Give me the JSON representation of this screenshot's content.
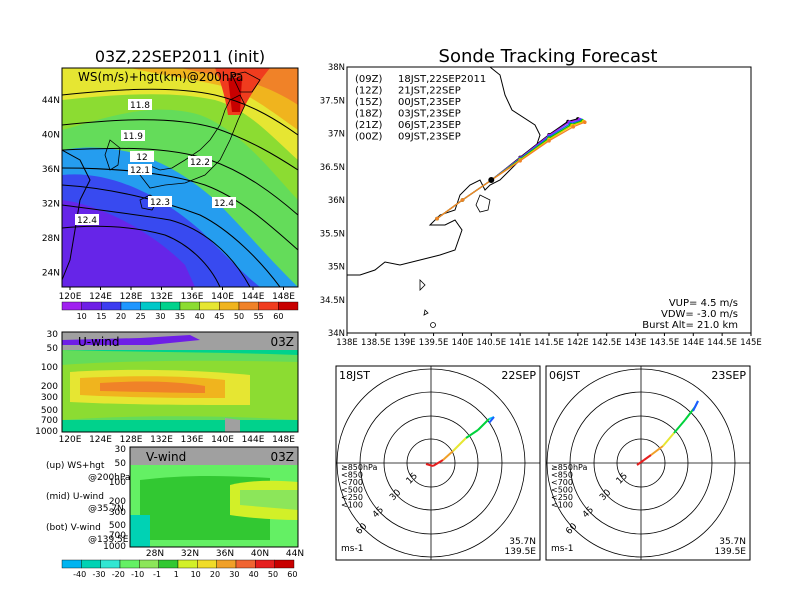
{
  "left_title": "03Z,22SEP2011 (init)",
  "main_title": "Sonde Tracking Forecast",
  "colors": {
    "ws_scale": [
      "#a020f0",
      "#6e1ee6",
      "#3c3cf0",
      "#1e96ff",
      "#00c8c8",
      "#00d28c",
      "#8cdc32",
      "#e6e632",
      "#f0b41e",
      "#f08228",
      "#f03c1e",
      "#c80000"
    ],
    "v_scale": [
      "#00b4f0",
      "#00d2b4",
      "#32e6d2",
      "#64f064",
      "#8ce65a",
      "#32c832",
      "#d2f028",
      "#f0dc28",
      "#f0a028",
      "#f06432",
      "#e61e1e",
      "#c80000"
    ],
    "track": [
      "#000000",
      "#a020f0",
      "#1e5aff",
      "#00c800",
      "#f0c800",
      "#f08228"
    ],
    "hodo": [
      "#e61e1e",
      "#f0a028",
      "#e6e632",
      "#00d23c",
      "#00c8f0",
      "#1e5aff"
    ]
  },
  "panel_up": {
    "label": "WS(m/s)+hgt(km)@200hPa",
    "x_ticks": [
      "120E",
      "124E",
      "128E",
      "132E",
      "136E",
      "140E",
      "144E",
      "148E"
    ],
    "y_ticks": [
      "44N",
      "40N",
      "36N",
      "32N",
      "28N",
      "24N"
    ],
    "contour_labels": [
      "11.8",
      "11.9",
      "12",
      "12.1",
      "12.2",
      "12.3",
      "12.4",
      "12.4"
    ],
    "colorbar_labels": [
      "10",
      "15",
      "20",
      "25",
      "30",
      "35",
      "40",
      "45",
      "50",
      "55",
      "60"
    ]
  },
  "panel_mid": {
    "label": "U-wind",
    "time": "03Z",
    "x_ticks": [
      "120E",
      "124E",
      "128E",
      "132E",
      "136E",
      "140E",
      "144E",
      "148E"
    ],
    "y_ticks": [
      "30",
      "50",
      "100",
      "200",
      "300",
      "500",
      "700",
      "1000"
    ]
  },
  "panel_bot": {
    "label": "V-wind",
    "time": "03Z",
    "x_ticks": [
      "28N",
      "32N",
      "36N",
      "40N",
      "44N"
    ],
    "y_ticks": [
      "30",
      "50",
      "100",
      "200",
      "300",
      "500",
      "700",
      "1000"
    ],
    "colorbar_labels": [
      "-40",
      "-30",
      "-20",
      "-10",
      "-1",
      "1",
      "10",
      "20",
      "30",
      "40",
      "50",
      "60"
    ]
  },
  "legend_text": [
    [
      "(up) WS+hgt",
      "@200hPa"
    ],
    [
      "(mid) U-wind",
      "@35.7N"
    ],
    [
      "(bot) V-wind",
      "@139.5E"
    ]
  ],
  "track_panel": {
    "x_ticks": [
      "138E",
      "138.5E",
      "139E",
      "139.5E",
      "140E",
      "140.5E",
      "141E",
      "141.5E",
      "142E",
      "142.5E",
      "143E",
      "143.5E",
      "144E",
      "144.5E",
      "145E"
    ],
    "y_ticks": [
      "38N",
      "37.5N",
      "37N",
      "36.5N",
      "36N",
      "35.5N",
      "35N",
      "34.5N",
      "34N"
    ],
    "legend": [
      {
        "run": "(09Z)",
        "valid": "18JST,22SEP2011"
      },
      {
        "run": "(12Z)",
        "valid": "21JST,22SEP"
      },
      {
        "run": "(15Z)",
        "valid": "00JST,23SEP"
      },
      {
        "run": "(18Z)",
        "valid": "03JST,23SEP"
      },
      {
        "run": "(21Z)",
        "valid": "06JST,23SEP"
      },
      {
        "run": "(00Z)",
        "valid": "09JST,23SEP"
      }
    ],
    "params": [
      "VUP= 4.5 m/s",
      "VDW= -3.0 m/s",
      "Burst Alt= 21.0 km"
    ]
  },
  "hodographs": [
    {
      "time": "18JST",
      "date": "22SEP",
      "rings": [
        "15",
        "30",
        "45",
        "60"
      ],
      "lat": "35.7N",
      "lon": "139.5E",
      "unit": "ms-1",
      "levels": [
        "≥850hPa",
        "<850",
        "<700",
        "<500",
        "<250",
        "<100"
      ]
    },
    {
      "time": "06JST",
      "date": "23SEP",
      "rings": [
        "15",
        "30",
        "45",
        "60"
      ],
      "lat": "35.7N",
      "lon": "139.5E",
      "unit": "ms-1",
      "levels": [
        "≥850hPa",
        "<850",
        "<700",
        "<500",
        "<250",
        "<100"
      ]
    }
  ],
  "chart_data": [
    {
      "type": "heatmap",
      "title": "03Z,22SEP2011 (init)",
      "variable": "WS(m/s)+hgt(km)@200hPa",
      "x_range": [
        "120E",
        "150E"
      ],
      "y_range": [
        "22N",
        "47N"
      ],
      "color_levels": [
        10,
        15,
        20,
        25,
        30,
        35,
        40,
        45,
        50,
        55,
        60
      ],
      "height_contours_km": [
        11.8,
        11.9,
        12,
        12.1,
        12.2,
        12.3,
        12.4
      ]
    },
    {
      "type": "heatmap",
      "variable": "U-wind",
      "time": "03Z",
      "x_range": [
        "120E",
        "150E"
      ],
      "y_levels_hPa": [
        30,
        50,
        100,
        200,
        300,
        500,
        700,
        1000
      ]
    },
    {
      "type": "heatmap",
      "variable": "V-wind",
      "time": "03Z",
      "x_range": [
        "28N",
        "44N"
      ],
      "y_levels_hPa": [
        30,
        50,
        100,
        200,
        300,
        500,
        700,
        1000
      ],
      "color_levels": [
        -40,
        -30,
        -20,
        -10,
        -1,
        1,
        10,
        20,
        30,
        40,
        50,
        60
      ]
    },
    {
      "type": "line",
      "title": "Sonde Tracking Forecast",
      "xlim": [
        138,
        145
      ],
      "ylim": [
        34,
        38
      ],
      "launch": {
        "lon": 140.5,
        "lat": 36.3
      },
      "series": [
        {
          "name": "(09Z) 18JST,22SEP2011",
          "lon": [
            139.56,
            140.0,
            140.5,
            141.0,
            141.5,
            141.83,
            142.0
          ],
          "lat": [
            35.72,
            36.0,
            36.3,
            36.64,
            36.98,
            37.18,
            37.22
          ]
        },
        {
          "name": "(12Z) 21JST,22SEP",
          "lon": [
            139.56,
            140.0,
            140.5,
            141.0,
            141.5,
            141.85,
            142.03
          ],
          "lat": [
            35.72,
            36.0,
            36.3,
            36.63,
            36.97,
            37.17,
            37.21
          ]
        },
        {
          "name": "(15Z) 00JST,23SEP",
          "lon": [
            139.56,
            140.0,
            140.5,
            141.0,
            141.5,
            141.87,
            142.06
          ],
          "lat": [
            35.72,
            36.0,
            36.3,
            36.62,
            36.95,
            37.15,
            37.2
          ]
        },
        {
          "name": "(18Z) 03JST,23SEP",
          "lon": [
            139.56,
            140.0,
            140.5,
            141.0,
            141.5,
            141.88,
            142.08
          ],
          "lat": [
            35.72,
            36.0,
            36.3,
            36.61,
            36.93,
            37.13,
            37.19
          ]
        },
        {
          "name": "(21Z) 06JST,23SEP",
          "lon": [
            139.56,
            140.0,
            140.5,
            141.0,
            141.5,
            141.9,
            142.1
          ],
          "lat": [
            35.72,
            36.0,
            36.3,
            36.6,
            36.91,
            37.12,
            37.18
          ]
        },
        {
          "name": "(00Z) 09JST,23SEP",
          "lon": [
            139.56,
            140.0,
            140.5,
            141.0,
            141.5,
            141.92,
            142.12
          ],
          "lat": [
            35.72,
            36.0,
            36.3,
            36.59,
            36.89,
            37.1,
            37.17
          ]
        }
      ]
    }
  ]
}
